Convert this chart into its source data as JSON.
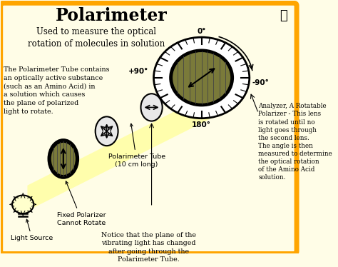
{
  "title": "Polarimeter",
  "subtitle": "Used to measure the optical\nrotation of molecules in solution",
  "bg_color": "#FFFDE7",
  "border_color": "#FFA500",
  "text_color": "#000000",
  "olive_color": "#7A7A3A",
  "labels": {
    "light_source": "Light Source",
    "fixed_polarizer": "Fixed Polarizer\nCannot Rotate",
    "polarimeter_tube": "Polarimeter Tube\n(10 cm long)",
    "analyzer_desc": "Analyzer, A Rotatable\nPolarizer - This lens\nis rotated until no\nlight goes through\nthe second lens.\nThe angle is then\nmeasured to determine\nthe optical rotation\nof the Amino Acid\nsolution.",
    "left_text": "The Polarimeter Tube contains\nan optically active substance\n(such as an Amino Acid) in\na solution which causes\nthe plane of polarized\nlight to rotate.",
    "bottom_notice": "Notice that the plane of the\nvibrating light has changed\nafter going through the\nPolarimeter Tube.",
    "angle_0": "0°",
    "angle_p90": "+90°",
    "angle_n90": "-90°",
    "angle_180": "180°"
  }
}
